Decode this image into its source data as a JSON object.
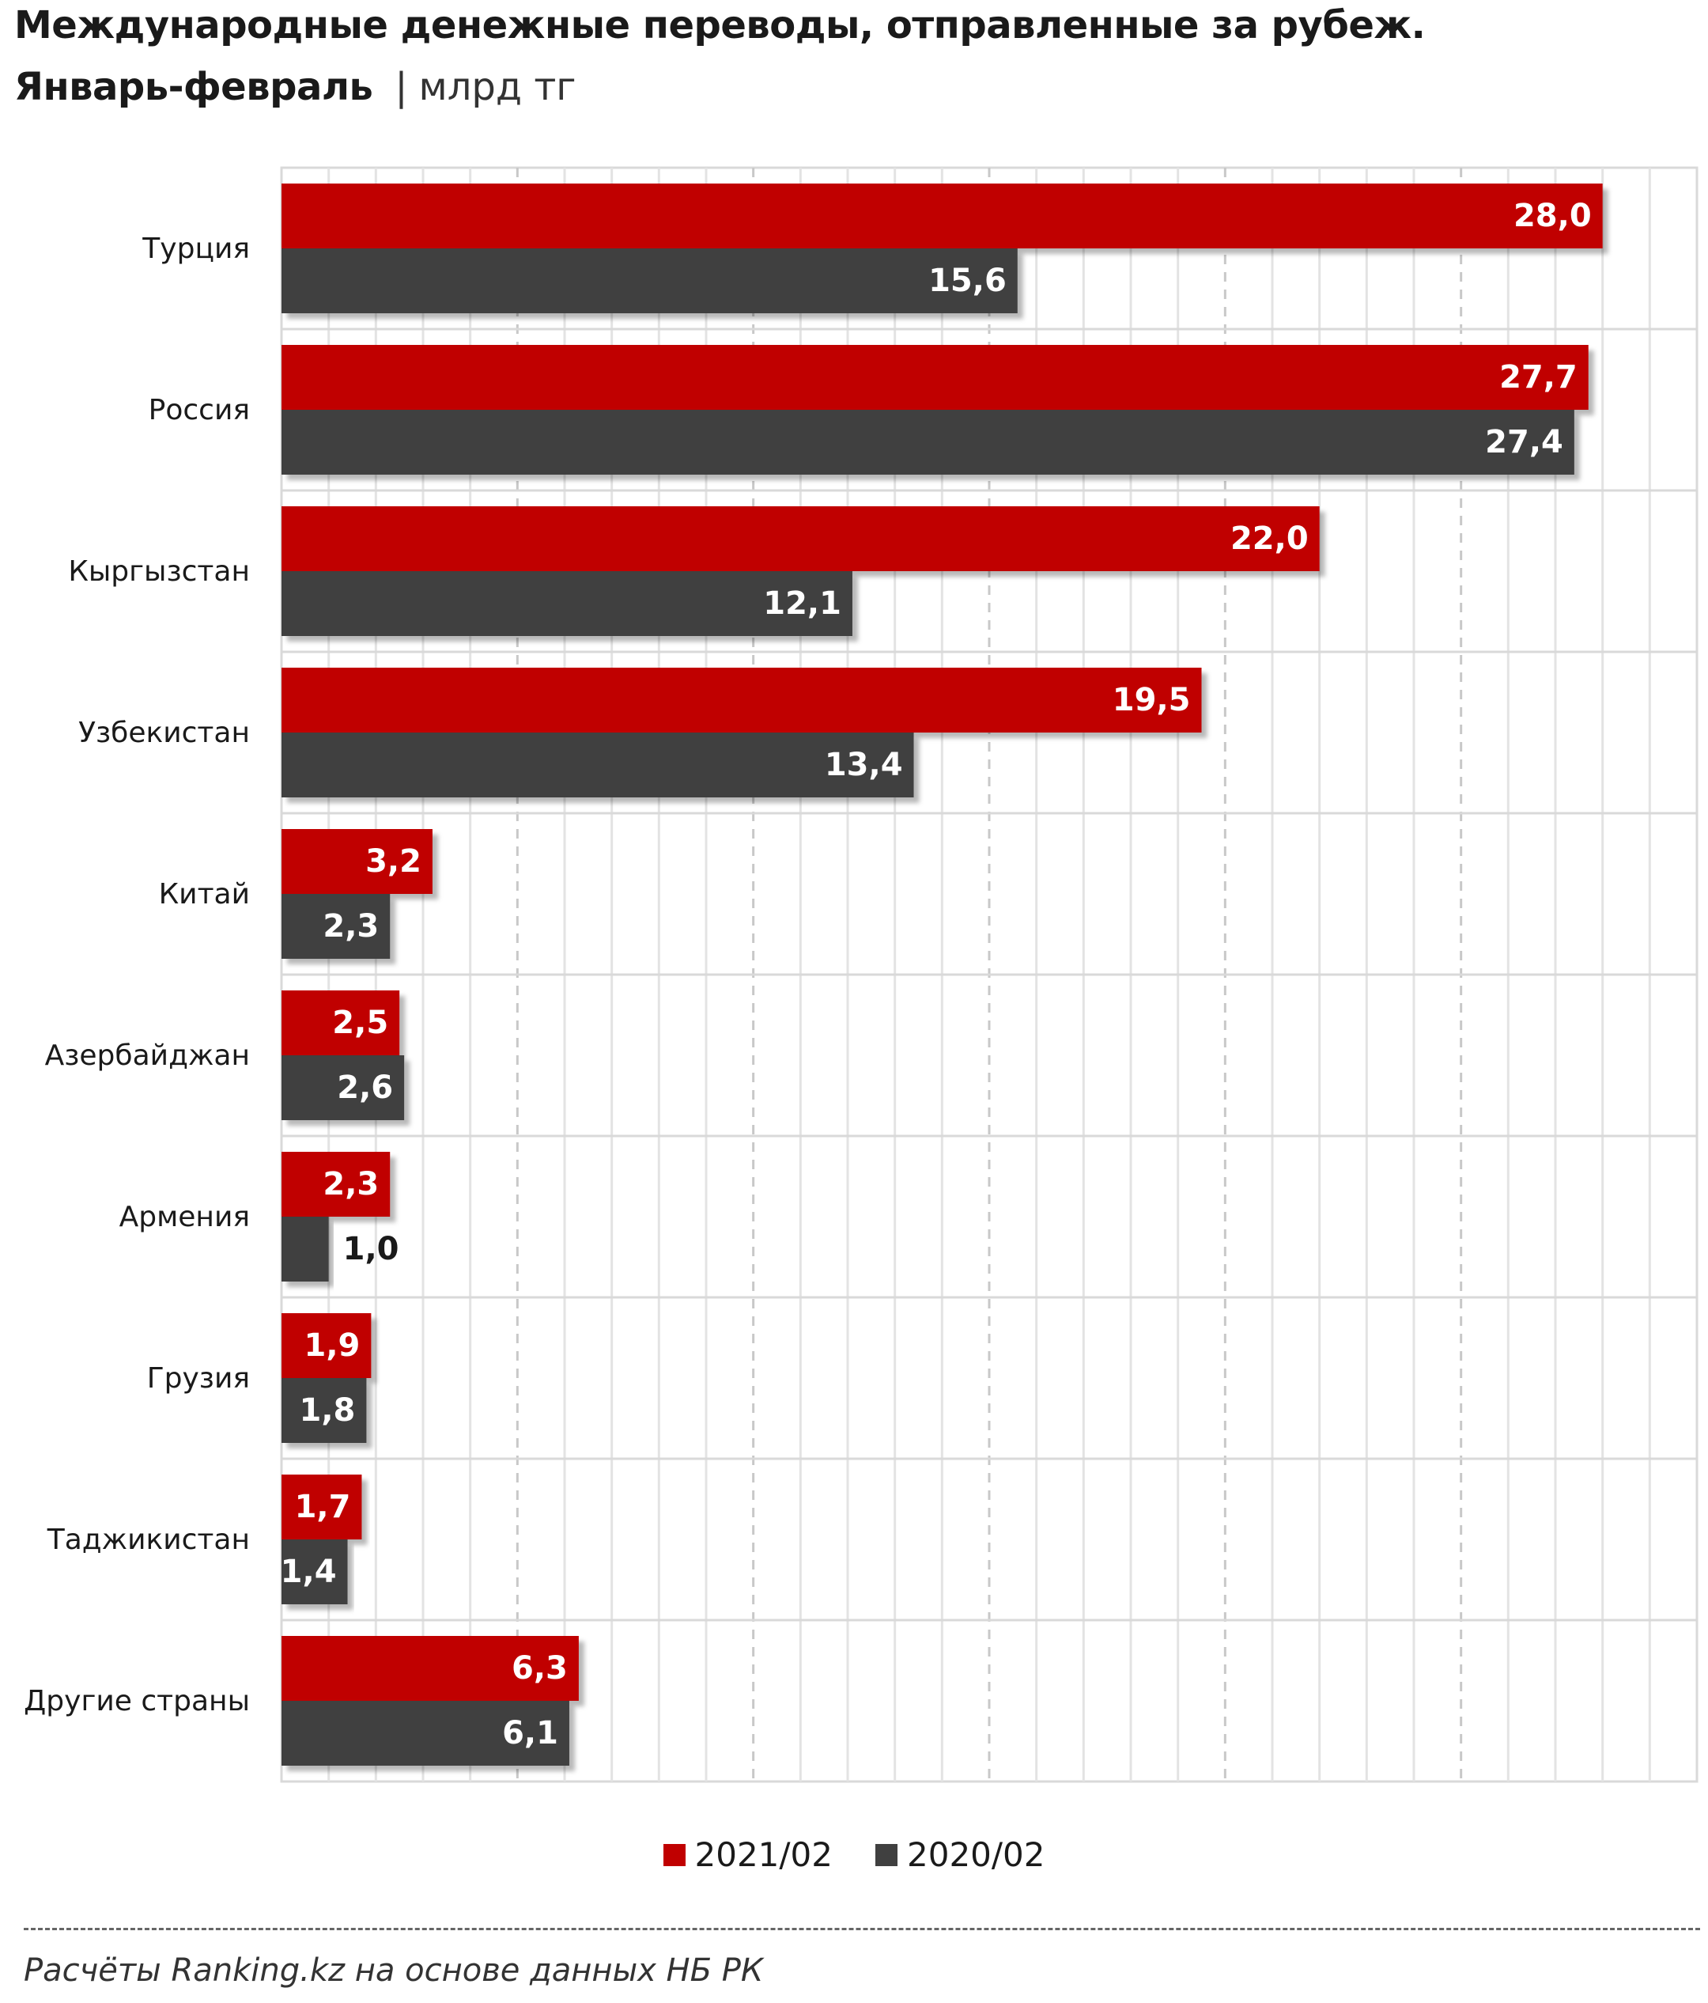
{
  "header": {
    "title": "Международные денежные переводы, отправленные за рубеж.",
    "subtitle_main": "Январь-февраль",
    "subtitle_separator": "|",
    "subtitle_unit": "млрд тг"
  },
  "colors": {
    "series_2021": "#c00000",
    "series_2020": "#404040",
    "grid": "#d9d9d9",
    "label_inside": "#ffffff",
    "label_outside": "#1a1a1a"
  },
  "chart_data": {
    "type": "bar",
    "orientation": "horizontal",
    "categories": [
      "Турция",
      "Россия",
      "Кыргызстан",
      "Узбекистан",
      "Китай",
      "Азербайджан",
      "Армения",
      "Грузия",
      "Таджикистан",
      "Другие страны"
    ],
    "series": [
      {
        "name": "2021/02",
        "values": [
          28.0,
          27.7,
          22.0,
          19.5,
          3.2,
          2.5,
          2.3,
          1.9,
          1.7,
          6.3
        ],
        "labels": [
          "28,0",
          "27,7",
          "22,0",
          "19,5",
          "3,2",
          "2,5",
          "2,3",
          "1,9",
          "1,7",
          "6,3"
        ]
      },
      {
        "name": "2020/02",
        "values": [
          15.6,
          27.4,
          12.1,
          13.4,
          2.3,
          2.6,
          1.0,
          1.8,
          1.4,
          6.1
        ],
        "labels": [
          "15,6",
          "27,4",
          "12,1",
          "13,4",
          "2,3",
          "2,6",
          "1,0",
          "1,8",
          "1,4",
          "6,1"
        ]
      }
    ],
    "xlim": [
      0,
      30
    ],
    "grid": true,
    "legend_position": "bottom"
  },
  "legend": [
    {
      "label": "2021/02",
      "color": "#c00000"
    },
    {
      "label": "2020/02",
      "color": "#404040"
    }
  ],
  "footer": {
    "source": "Расчёты Ranking.kz на основе данных НБ РК"
  }
}
